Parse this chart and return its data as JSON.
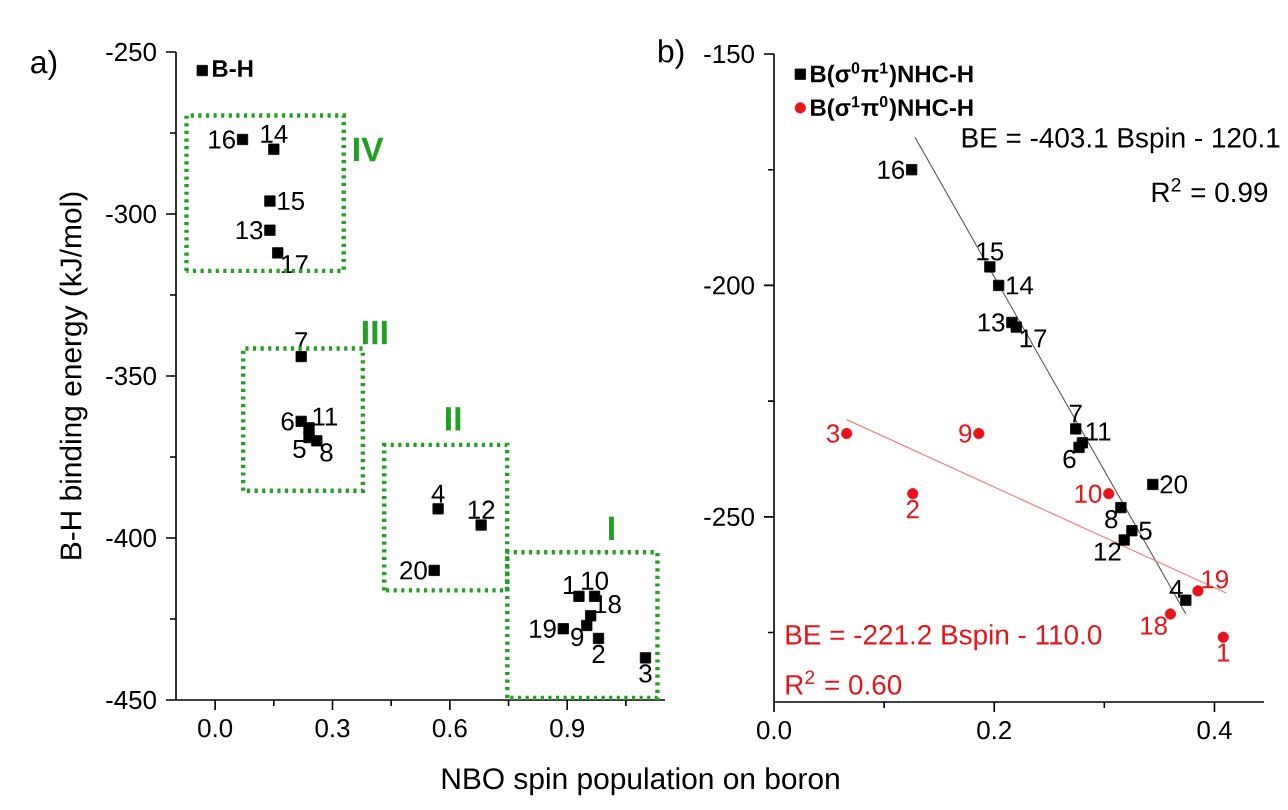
{
  "chart_data": [
    {
      "type": "scatter",
      "title": "a)",
      "xlabel": "NBO spin population on boron",
      "ylabel": "B-H binding energy (kJ/mol)",
      "xlim": [
        -0.1,
        1.15
      ],
      "ylim": [
        -450,
        -250
      ],
      "xticks": [
        {
          "value": 0,
          "label": "0.0"
        },
        {
          "value": 0.15,
          "label": null
        },
        0.3,
        {
          "value": 0.45,
          "label": null
        },
        0.6,
        {
          "value": 0.75,
          "label": null
        },
        0.9,
        {
          "value": 1.05,
          "label": null
        }
      ],
      "yticks": [
        -450,
        {
          "value": -425,
          "label": null
        },
        -400,
        {
          "value": -375,
          "label": null
        },
        -350,
        {
          "value": -325,
          "label": null
        },
        -300,
        {
          "value": -275,
          "label": null
        },
        -250
      ],
      "legend": "top left",
      "marker": "square",
      "series": [
        {
          "name": "B-H",
          "color": "#000000",
          "x": [
            0.93,
            0.98,
            1.1,
            0.57,
            0.24,
            0.22,
            0.22,
            0.26,
            0.95,
            0.97,
            0.24,
            0.68,
            0.14,
            0.15,
            0.14,
            0.07,
            0.16,
            0.96,
            0.89,
            0.56
          ],
          "values": [
            -418,
            -431,
            -437,
            -391,
            -369,
            -364,
            -344,
            -370,
            -427,
            -418,
            -366,
            -396,
            -305,
            -280,
            -296,
            -277,
            -312,
            -424,
            -428,
            -410
          ]
        }
      ],
      "annotations": [
        {
          "text": "1",
          "x": 0.93,
          "y": -418
        },
        {
          "text": "2",
          "x": 0.98,
          "y": -431
        },
        {
          "text": "3",
          "x": 1.1,
          "y": -437
        },
        {
          "text": "4",
          "x": 0.57,
          "y": -391
        },
        {
          "text": "5",
          "x": 0.24,
          "y": -369
        },
        {
          "text": "6",
          "x": 0.22,
          "y": -364
        },
        {
          "text": "7",
          "x": 0.22,
          "y": -344
        },
        {
          "text": "8",
          "x": 0.26,
          "y": -370
        },
        {
          "text": "9",
          "x": 0.95,
          "y": -427
        },
        {
          "text": "10",
          "x": 0.97,
          "y": -418
        },
        {
          "text": "11",
          "x": 0.24,
          "y": -366
        },
        {
          "text": "12",
          "x": 0.68,
          "y": -396
        },
        {
          "text": "13",
          "x": 0.14,
          "y": -305
        },
        {
          "text": "14",
          "x": 0.15,
          "y": -280
        },
        {
          "text": "15",
          "x": 0.14,
          "y": -296
        },
        {
          "text": "16",
          "x": 0.07,
          "y": -277
        },
        {
          "text": "17",
          "x": 0.16,
          "y": -312
        },
        {
          "text": "18",
          "x": 0.96,
          "y": -424
        },
        {
          "text": "19",
          "x": 0.89,
          "y": -428
        },
        {
          "text": "20",
          "x": 0.56,
          "y": -410
        },
        "IV",
        "III",
        "II",
        "I"
      ]
    },
    {
      "type": "scatter",
      "title": "b)",
      "xlim": [
        0,
        0.445
      ],
      "ylim": [
        -290,
        -150
      ],
      "xticks": [
        {
          "value": 0,
          "label": "0.0"
        },
        {
          "value": 0.1,
          "label": null
        },
        0.2,
        {
          "value": 0.3,
          "label": null
        },
        0.4
      ],
      "yticks": [
        {
          "value": -275,
          "label": null
        },
        -250,
        {
          "value": -225,
          "label": null
        },
        -200,
        {
          "value": -175,
          "label": null
        },
        -150
      ],
      "legend": "top left",
      "series": [
        {
          "name": "B(σ$^{0}$π$^{1}$)NHC-H",
          "color": "#000000",
          "marker": "square",
          "x": [
            0.374,
            0.325,
            0.277,
            0.274,
            0.315,
            0.28,
            0.318,
            0.216,
            0.204,
            0.196,
            0.125,
            0.22,
            0.344
          ],
          "values": [
            -268,
            -253,
            -235,
            -231,
            -248,
            -234,
            -255,
            -208,
            -200,
            -196,
            -175,
            -209,
            -243
          ]
        },
        {
          "name": "B(σ$^{1}$π$^{0}$)NHC-H",
          "color": "#e8141c",
          "marker": "circle",
          "x": [
            0.408,
            0.126,
            0.066,
            0.186,
            0.304,
            0.36,
            0.385
          ],
          "values": [
            -276,
            -245,
            -232,
            -232,
            -245,
            -271,
            -266
          ]
        },
        {
          "type": "line",
          "color": "#606060",
          "marker": "none",
          "x": [
            0.128,
            0.374
          ],
          "values": [
            -168,
            -271
          ]
        },
        {
          "type": "line",
          "color": "#f08080",
          "marker": "none",
          "x": [
            0.066,
            0.411
          ],
          "values": [
            -229,
            -266.5
          ]
        }
      ],
      "annotations": [
        {
          "text": "1",
          "x": 0.408,
          "y": -276
        },
        {
          "text": "2",
          "x": 0.126,
          "y": -245
        },
        {
          "text": "3",
          "x": 0.066,
          "y": -232
        },
        {
          "text": "4",
          "x": 0.374,
          "y": -268
        },
        {
          "text": "5",
          "x": 0.325,
          "y": -253
        },
        {
          "text": "6",
          "x": 0.277,
          "y": -235
        },
        {
          "text": "7",
          "x": 0.274,
          "y": -231
        },
        {
          "text": "8",
          "x": 0.315,
          "y": -248
        },
        {
          "text": "9",
          "x": 0.186,
          "y": -232
        },
        {
          "text": "10",
          "x": 0.304,
          "y": -245
        },
        {
          "text": "11",
          "x": 0.28,
          "y": -234
        },
        {
          "text": "12",
          "x": 0.318,
          "y": -255
        },
        {
          "text": "13",
          "x": 0.216,
          "y": -208
        },
        {
          "text": "14",
          "x": 0.204,
          "y": -200
        },
        {
          "text": "15",
          "x": 0.196,
          "y": -196
        },
        {
          "text": "16",
          "x": 0.125,
          "y": -175
        },
        {
          "text": "17",
          "x": 0.22,
          "y": -209
        },
        {
          "text": "18",
          "x": 0.36,
          "y": -271
        },
        {
          "text": "19",
          "x": 0.385,
          "y": -266
        },
        {
          "text": "20",
          "x": 0.344,
          "y": -243
        },
        "BE = -403.1 Bspin - 120.1",
        "R$^{2}$ = 0.99",
        "BE = -221.2 Bspin - 110.0",
        "R$^{2}$ = 0.60"
      ]
    }
  ]
}
